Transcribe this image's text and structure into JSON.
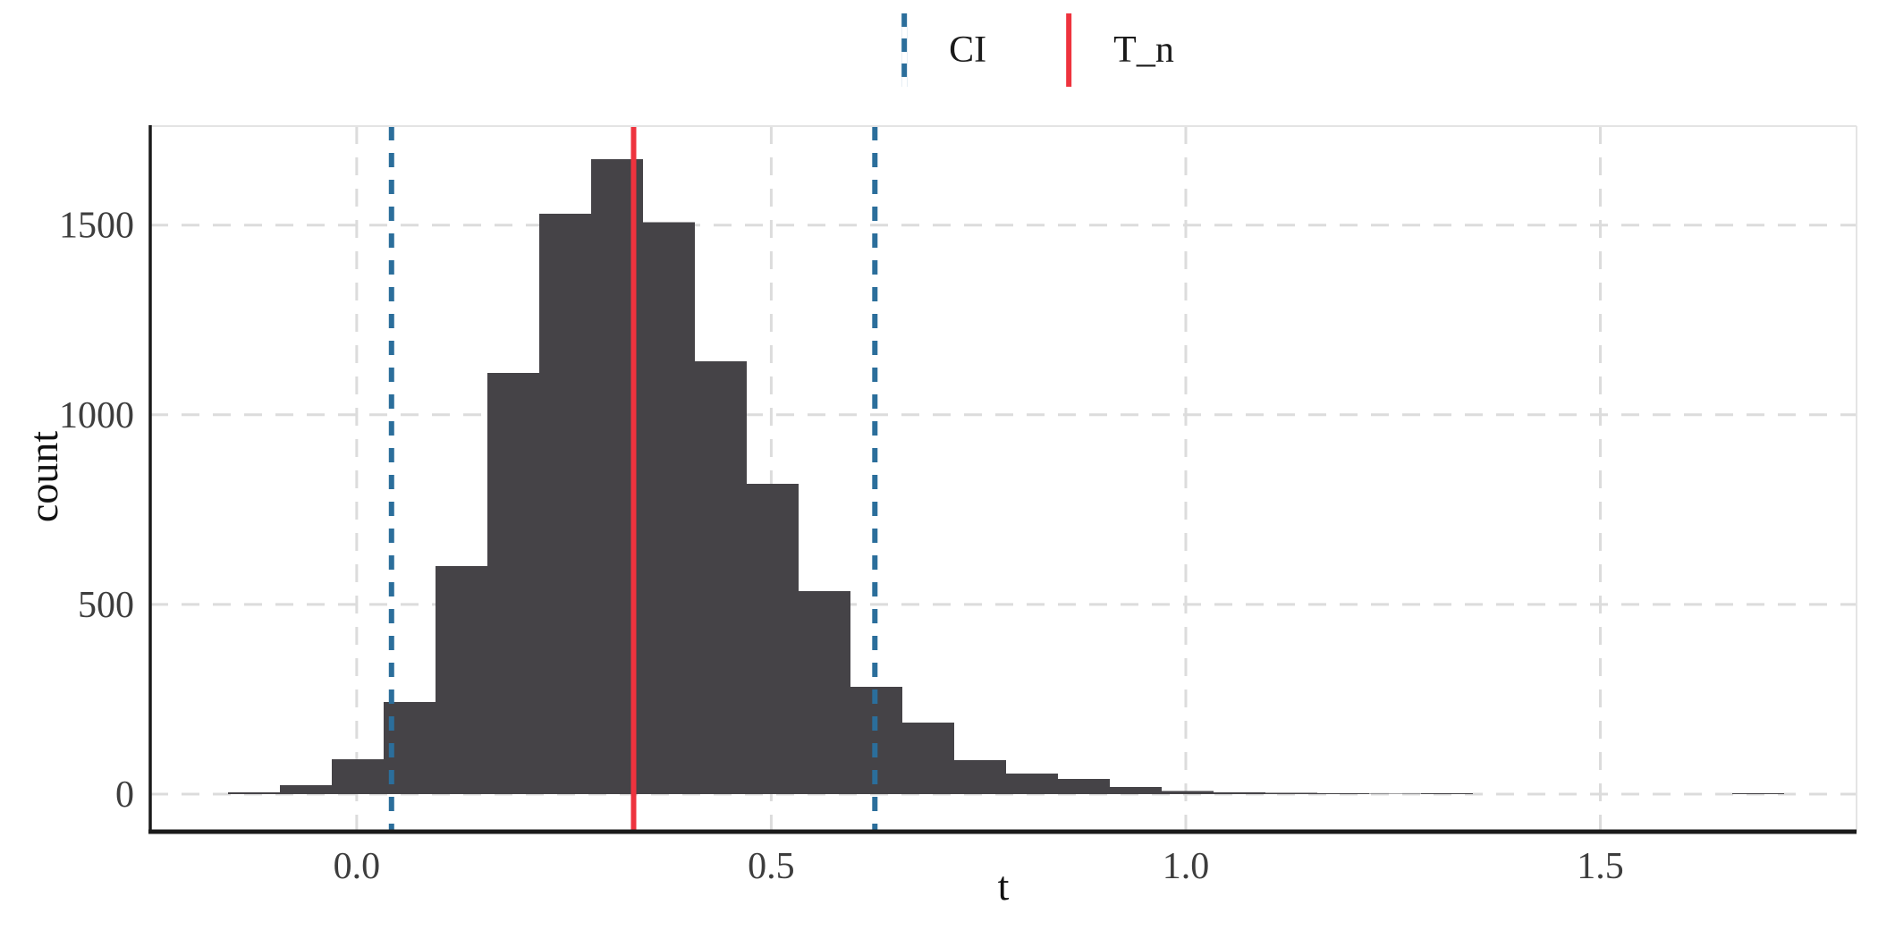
{
  "axes": {
    "x_title": "t",
    "y_title": "count"
  },
  "legend": {
    "position": "top-center",
    "entries": [
      {
        "label": "CI",
        "style": "dashed",
        "color": "#2b6e9b",
        "dash": "15 13"
      },
      {
        "label": "T_n",
        "style": "solid",
        "color": "#ee333e",
        "dash": ""
      }
    ]
  },
  "colors": {
    "bar_fill": "#454347",
    "ci_line": "#2b6e9b",
    "t_n_line": "#ee333e",
    "gridline": "#dcdcdc",
    "panel_border": "#e4e4e4",
    "axis_line": "#1b1b1b",
    "tick_text": "#3d3d3d"
  },
  "chart_data": {
    "type": "bar",
    "subtype": "histogram",
    "title": "",
    "xlabel": "t",
    "ylabel": "count",
    "xlim": [
      -0.249,
      1.809
    ],
    "ylim": [
      -99,
      1761
    ],
    "grid": "dashed-major-both",
    "x_ticks": [
      0.0,
      0.5,
      1.0,
      1.5
    ],
    "x_tick_labels": [
      "0.0",
      "0.5",
      "1.0",
      "1.5"
    ],
    "y_ticks": [
      0,
      500,
      1000,
      1500
    ],
    "y_tick_labels": [
      "0",
      "500",
      "1000",
      "1500"
    ],
    "bins": {
      "start": -0.1553,
      "width": 0.06257,
      "counts": [
        5,
        24,
        92,
        243,
        601,
        1110,
        1530,
        1674,
        1507,
        1141,
        818,
        535,
        283,
        189,
        90,
        54,
        40,
        19,
        8,
        5,
        3,
        2,
        1,
        2,
        0,
        0,
        0,
        0,
        0,
        2
      ]
    },
    "vlines": [
      {
        "name": "ci-lower",
        "t": 0.042,
        "style": "dashed",
        "legend": "CI"
      },
      {
        "name": "ci-upper",
        "t": 0.625,
        "style": "dashed",
        "legend": "CI"
      },
      {
        "name": "t-n",
        "t": 0.334,
        "style": "solid",
        "legend": "T_n"
      }
    ]
  }
}
